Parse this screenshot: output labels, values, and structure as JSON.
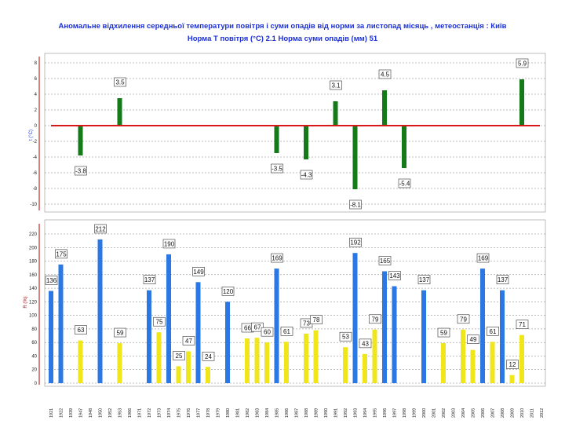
{
  "title": "Аномальне відхилення середньої температури повітря і суми опадів від норми за листопад місяць , метеостанція : Київ",
  "subtitle": "Норма Т повітря (°С) 2.1     Норма суми опадів (мм) 51",
  "colors": {
    "temp_bar": "#157a1a",
    "norm_line": "#d81818",
    "precip_high": "#2b78e4",
    "precip_low": "#f0e61c",
    "grid": "#7a7a7a",
    "axis_red": "#b00000",
    "axis_blue": "#1a2fd6"
  },
  "chart_data": [
    {
      "type": "bar",
      "title": "",
      "xlabel": "",
      "ylabel": "t (°С)",
      "ylim": [
        -10,
        8
      ],
      "yticks": [
        "8",
        "6",
        "4",
        "2",
        "0",
        "-2",
        "-4",
        "-6",
        "-8",
        "-10"
      ],
      "grid": true,
      "reference_line": 0,
      "series": [
        {
          "points": [
            {
              "year": "1947",
              "value": -3.8,
              "label": "-3.8"
            },
            {
              "year": "1953",
              "value": 3.5,
              "label": "3.5"
            },
            {
              "year": "1985",
              "value": -3.5,
              "label": "-3.5"
            },
            {
              "year": "1988",
              "value": -4.3,
              "label": "-4.3"
            },
            {
              "year": "1991",
              "value": 3.1,
              "label": "3.1"
            },
            {
              "year": "1993",
              "value": -8.1,
              "label": "-8.1"
            },
            {
              "year": "1996",
              "value": 4.5,
              "label": "4.5"
            },
            {
              "year": "1998",
              "value": -5.4,
              "label": "-5.4"
            },
            {
              "year": "2010",
              "value": 5.9,
              "label": "5.9"
            }
          ]
        }
      ]
    },
    {
      "type": "bar",
      "title": "",
      "xlabel": "",
      "ylabel": "R (%)",
      "ylim": [
        0,
        230
      ],
      "yticks": [
        "220",
        "200",
        "180",
        "160",
        "140",
        "120",
        "100",
        "80",
        "60",
        "40",
        "20",
        "0"
      ],
      "grid": true,
      "categories": [
        "1921",
        "1922",
        "1939",
        "1947",
        "1948",
        "1950",
        "1952",
        "1953",
        "1966",
        "1971",
        "1972",
        "1973",
        "1974",
        "1975",
        "1976",
        "1977",
        "1978",
        "1979",
        "1980",
        "1981",
        "1982",
        "1983",
        "1984",
        "1985",
        "1986",
        "1987",
        "1988",
        "1989",
        "1990",
        "1991",
        "1992",
        "1993",
        "1994",
        "1995",
        "1996",
        "1997",
        "1998",
        "1999",
        "2000",
        "2001",
        "2002",
        "2003",
        "2004",
        "2005",
        "2006",
        "2007",
        "2008",
        "2009",
        "2010",
        "2011",
        "2012"
      ],
      "series": [
        {
          "points": [
            {
              "year": "1921",
              "value": 136,
              "label": "136",
              "color": "precip_high"
            },
            {
              "year": "1922",
              "value": 175,
              "label": "175",
              "color": "precip_high"
            },
            {
              "year": "1947",
              "value": 63,
              "label": "63",
              "color": "precip_low"
            },
            {
              "year": "1950",
              "value": 212,
              "label": "212",
              "color": "precip_high"
            },
            {
              "year": "1953",
              "value": 59,
              "label": "59",
              "color": "precip_low"
            },
            {
              "year": "1972",
              "value": 137,
              "label": "137",
              "color": "precip_high"
            },
            {
              "year": "1973",
              "value": 75,
              "label": "75",
              "color": "precip_low"
            },
            {
              "year": "1974",
              "value": 190,
              "label": "190",
              "color": "precip_high"
            },
            {
              "year": "1975",
              "value": 25,
              "label": "25",
              "color": "precip_low"
            },
            {
              "year": "1976",
              "value": 47,
              "label": "47",
              "color": "precip_low"
            },
            {
              "year": "1977",
              "value": 149,
              "label": "149",
              "color": "precip_high"
            },
            {
              "year": "1978",
              "value": 24,
              "label": "24",
              "color": "precip_low"
            },
            {
              "year": "1980",
              "value": 120,
              "label": "120",
              "color": "precip_high"
            },
            {
              "year": "1982",
              "value": 66,
              "label": "66",
              "color": "precip_low"
            },
            {
              "year": "1983",
              "value": 67,
              "label": "67",
              "color": "precip_low"
            },
            {
              "year": "1984",
              "value": 60,
              "label": "60",
              "color": "precip_low"
            },
            {
              "year": "1985",
              "value": 169,
              "label": "169",
              "color": "precip_high"
            },
            {
              "year": "1986",
              "value": 61,
              "label": "61",
              "color": "precip_low"
            },
            {
              "year": "1988",
              "value": 73,
              "label": "73",
              "color": "precip_low"
            },
            {
              "year": "1989",
              "value": 78,
              "label": "78",
              "color": "precip_low"
            },
            {
              "year": "1992",
              "value": 53,
              "label": "53",
              "color": "precip_low"
            },
            {
              "year": "1993",
              "value": 192,
              "label": "192",
              "color": "precip_high"
            },
            {
              "year": "1994",
              "value": 43,
              "label": "43",
              "color": "precip_low"
            },
            {
              "year": "1995",
              "value": 79,
              "label": "79",
              "color": "precip_low"
            },
            {
              "year": "1996",
              "value": 165,
              "label": "165",
              "color": "precip_high"
            },
            {
              "year": "1997",
              "value": 143,
              "label": "143",
              "color": "precip_high"
            },
            {
              "year": "2000",
              "value": 137,
              "label": "137",
              "color": "precip_high"
            },
            {
              "year": "2002",
              "value": 59,
              "label": "59",
              "color": "precip_low"
            },
            {
              "year": "2004",
              "value": 79,
              "label": "79",
              "color": "precip_low"
            },
            {
              "year": "2005",
              "value": 49,
              "label": "49",
              "color": "precip_low"
            },
            {
              "year": "2006",
              "value": 169,
              "label": "169",
              "color": "precip_high"
            },
            {
              "year": "2007",
              "value": 61,
              "label": "61",
              "color": "precip_low"
            },
            {
              "year": "2008",
              "value": 137,
              "label": "137",
              "color": "precip_high"
            },
            {
              "year": "2009",
              "value": 12,
              "label": "12",
              "color": "precip_low"
            },
            {
              "year": "2010",
              "value": 71,
              "label": "71",
              "color": "precip_low"
            }
          ]
        }
      ]
    }
  ]
}
